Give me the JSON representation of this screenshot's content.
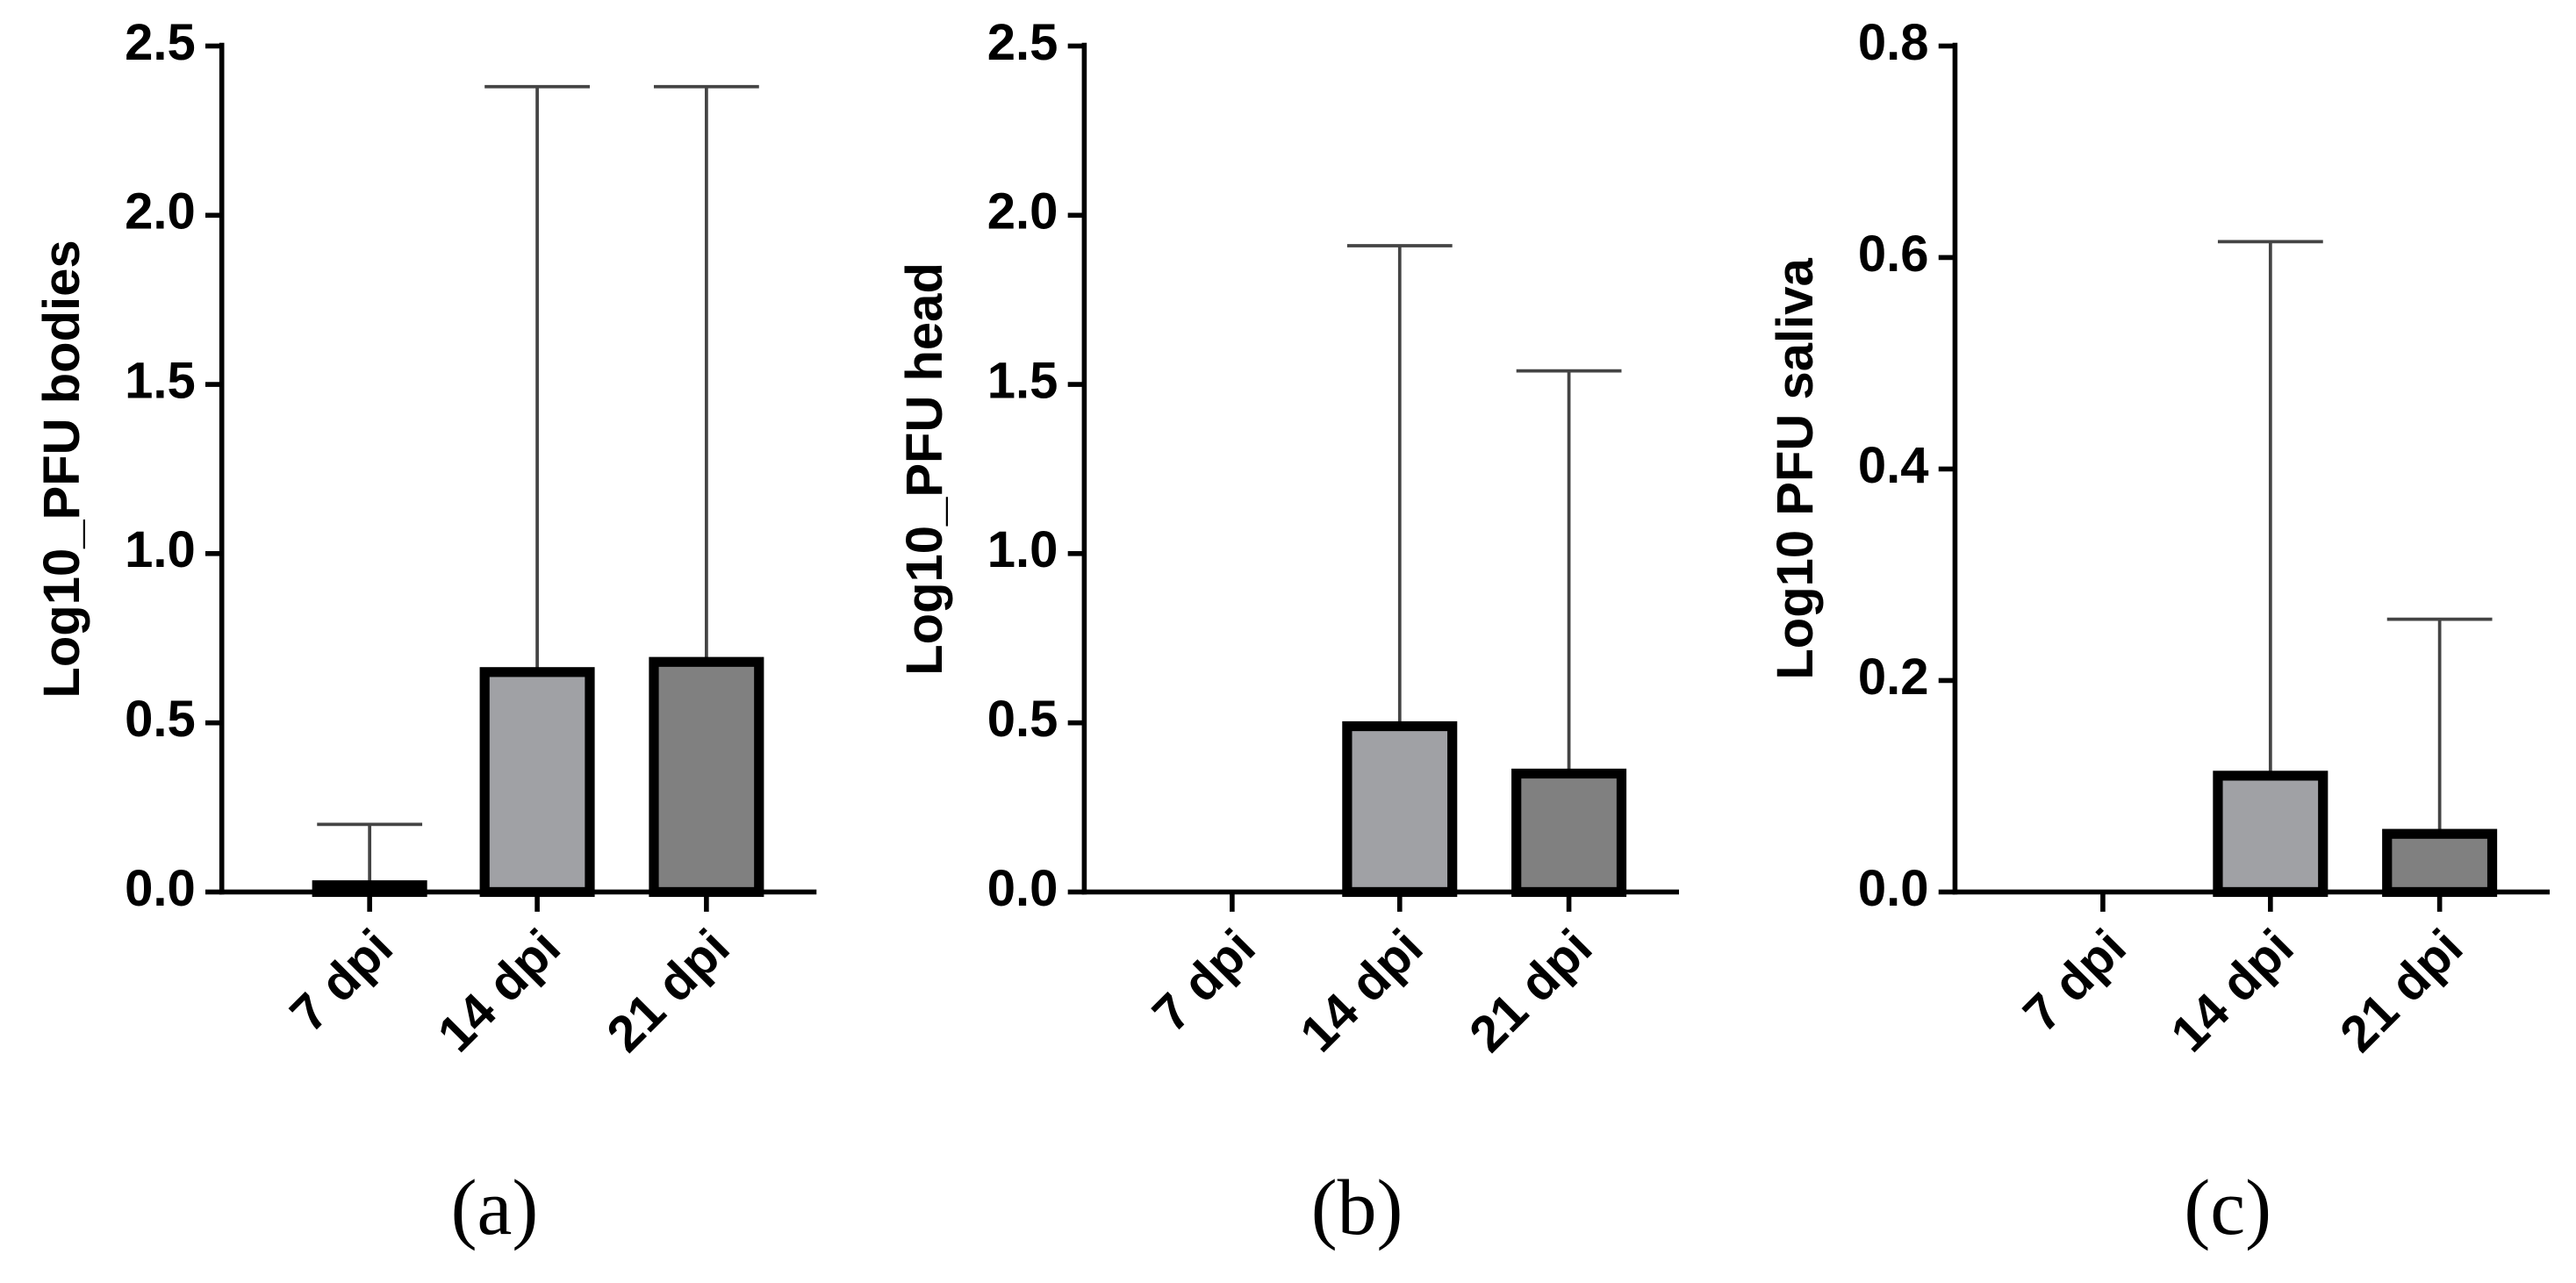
{
  "chart_data": [
    {
      "type": "bar",
      "label": "(a)",
      "y_label": "Log10_PFU bodies",
      "categories": [
        "7 dpi",
        "14 dpi",
        "21 dpi"
      ],
      "values": [
        0.02,
        0.65,
        0.68
      ],
      "errors": [
        0.18,
        1.73,
        1.7
      ],
      "colors": [
        "#c8c8c8",
        "#a0a1a5",
        "#808080"
      ],
      "ylim": [
        0,
        2.5
      ],
      "yticks": [
        {
          "value": 0,
          "label": "0.0"
        },
        0.5,
        {
          "value": 1,
          "label": "1.0"
        },
        1.5,
        {
          "value": 2,
          "label": "2.0"
        },
        2.5
      ]
    },
    {
      "type": "bar",
      "label": "(b)",
      "y_label": "Log10_PFU head",
      "categories": [
        "7 dpi",
        "14 dpi",
        "21 dpi"
      ],
      "values": [
        0,
        0.49,
        0.35
      ],
      "errors": [
        null,
        1.42,
        1.19
      ],
      "colors": [
        "#c8c8c8",
        "#a0a1a5",
        "#808080"
      ],
      "ylim": [
        0,
        2.5
      ],
      "yticks": [
        {
          "value": 0,
          "label": "0.0"
        },
        0.5,
        {
          "value": 1,
          "label": "1.0"
        },
        1.5,
        {
          "value": 2,
          "label": "2.0"
        },
        2.5
      ]
    },
    {
      "type": "bar",
      "label": "(c)",
      "y_label": "Log10 PFU saliva",
      "categories": [
        "7 dpi",
        "14 dpi",
        "21 dpi"
      ],
      "values": [
        0,
        0.11,
        0.055
      ],
      "errors": [
        null,
        0.505,
        0.203
      ],
      "colors": [
        "#c8c8c8",
        "#a0a1a5",
        "#808080"
      ],
      "ylim": [
        0,
        0.8
      ],
      "yticks": [
        {
          "value": 0,
          "label": "0.0"
        },
        0.2,
        0.4,
        0.6,
        0.8
      ]
    }
  ]
}
